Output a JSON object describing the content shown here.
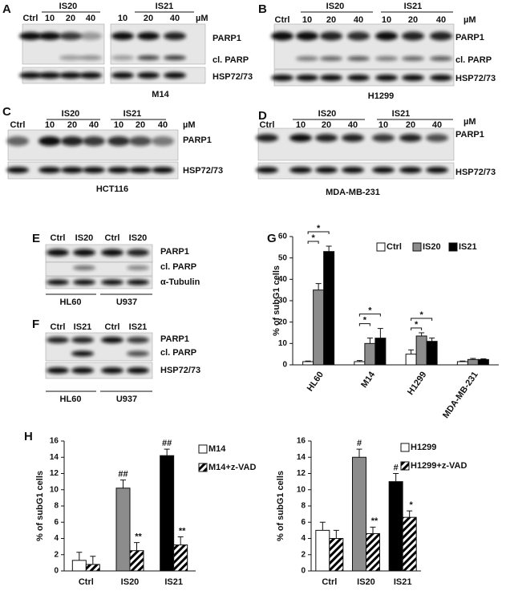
{
  "blots": [
    {
      "panel": "A",
      "groups": [
        "IS20",
        "IS21"
      ],
      "lanes": [
        "Ctrl",
        "10",
        "20",
        "40",
        "10",
        "20",
        "40"
      ],
      "unit": "µM",
      "bands": [
        "PARP1",
        "cl. PARP",
        "HSP72/73"
      ],
      "cells": [
        "M14"
      ]
    },
    {
      "panel": "B",
      "groups": [
        "IS20",
        "IS21"
      ],
      "lanes": [
        "Ctrl",
        "10",
        "20",
        "40",
        "10",
        "20",
        "40"
      ],
      "unit": "µM",
      "bands": [
        "PARP1",
        "cl. PARP",
        "HSP72/73"
      ],
      "cells": [
        "H1299"
      ]
    },
    {
      "panel": "C",
      "groups": [
        "IS20",
        "IS21"
      ],
      "lanes": [
        "Ctrl",
        "10",
        "20",
        "40",
        "10",
        "20",
        "40"
      ],
      "unit": "µM",
      "bands": [
        "PARP1",
        "HSP72/73"
      ],
      "cells": [
        "HCT116"
      ]
    },
    {
      "panel": "D",
      "groups": [
        "IS20",
        "IS21"
      ],
      "lanes": [
        "Ctrl",
        "10",
        "20",
        "40",
        "10",
        "20",
        "40"
      ],
      "unit": "µM",
      "bands": [
        "PARP1",
        "HSP72/73"
      ],
      "cells": [
        "MDA-MB-231"
      ]
    },
    {
      "panel": "E",
      "lanes": [
        "Ctrl",
        "IS20",
        "Ctrl",
        "IS20"
      ],
      "bands": [
        "PARP1",
        "cl. PARP",
        "α-Tubulin"
      ],
      "cells": [
        "HL60",
        "U937"
      ]
    },
    {
      "panel": "F",
      "lanes": [
        "Ctrl",
        "IS21",
        "Ctrl",
        "IS21"
      ],
      "bands": [
        "PARP1",
        "cl. PARP",
        "HSP72/73"
      ],
      "cells": [
        "HL60",
        "U937"
      ]
    }
  ],
  "chart_data": [
    {
      "type": "bar",
      "panel": "G",
      "y_label": "% of subG1 cells",
      "categories": [
        "HL60",
        "M14",
        "H1299",
        "MDA-MB-231"
      ],
      "series": [
        {
          "name": "Ctrl",
          "color": "#ffffff",
          "values": [
            1.5,
            1.5,
            5,
            1.5
          ],
          "errors": [
            0.3,
            0.5,
            2,
            0.3
          ]
        },
        {
          "name": "IS20",
          "color": "#8c8c8c",
          "values": [
            35,
            10,
            13.5,
            2.5
          ],
          "errors": [
            3,
            2.5,
            1.5,
            0.5
          ]
        },
        {
          "name": "IS21",
          "color": "#000000",
          "values": [
            53,
            12.5,
            11,
            2.5
          ],
          "errors": [
            2.5,
            4.5,
            1.5,
            0.3
          ]
        }
      ],
      "significance": [
        "*",
        "*",
        "*",
        "*",
        "*",
        "*"
      ],
      "ylim": [
        0,
        60
      ],
      "yticks": [
        0,
        10,
        20,
        30,
        40,
        50,
        60
      ],
      "legend": "top"
    },
    {
      "type": "bar",
      "panel": "H",
      "y_label": "% of subG1 cells",
      "categories": [
        "Ctrl",
        "IS20",
        "IS21"
      ],
      "series": [
        {
          "name": "M14",
          "color": "#ffffff",
          "colors": [
            "#ffffff",
            "#8c8c8c",
            "#000000"
          ],
          "values": [
            1.3,
            10.2,
            14.2
          ],
          "errors": [
            1,
            1,
            0.8
          ],
          "markers": [
            null,
            "##",
            "##"
          ]
        },
        {
          "name": "M14+z-VAD",
          "color": "#ffffff",
          "pattern": "hatch",
          "values": [
            0.8,
            2.5,
            3.2
          ],
          "errors": [
            1,
            1,
            1
          ],
          "markers": [
            null,
            "**",
            "**"
          ]
        }
      ],
      "ylim": [
        0,
        16
      ],
      "yticks": [
        0,
        2,
        4,
        6,
        8,
        10,
        12,
        14,
        16
      ],
      "legend": "right"
    },
    {
      "type": "bar",
      "y_label": "% of subG1 cells",
      "categories": [
        "Ctrl",
        "IS20",
        "IS21"
      ],
      "series": [
        {
          "name": "H1299",
          "color": "#ffffff",
          "colors": [
            "#ffffff",
            "#8c8c8c",
            "#000000"
          ],
          "values": [
            5,
            14,
            11
          ],
          "errors": [
            1,
            1,
            1
          ],
          "markers": [
            null,
            "#",
            "#"
          ]
        },
        {
          "name": "H1299+z-VAD",
          "color": "#ffffff",
          "pattern": "hatch",
          "values": [
            4,
            4.6,
            6.6
          ],
          "errors": [
            1,
            0.8,
            0.8
          ],
          "markers": [
            null,
            "**",
            "*"
          ]
        }
      ],
      "ylim": [
        0,
        16
      ],
      "yticks": [
        0,
        2,
        4,
        6,
        8,
        10,
        12,
        14,
        16
      ],
      "legend": "right"
    }
  ]
}
